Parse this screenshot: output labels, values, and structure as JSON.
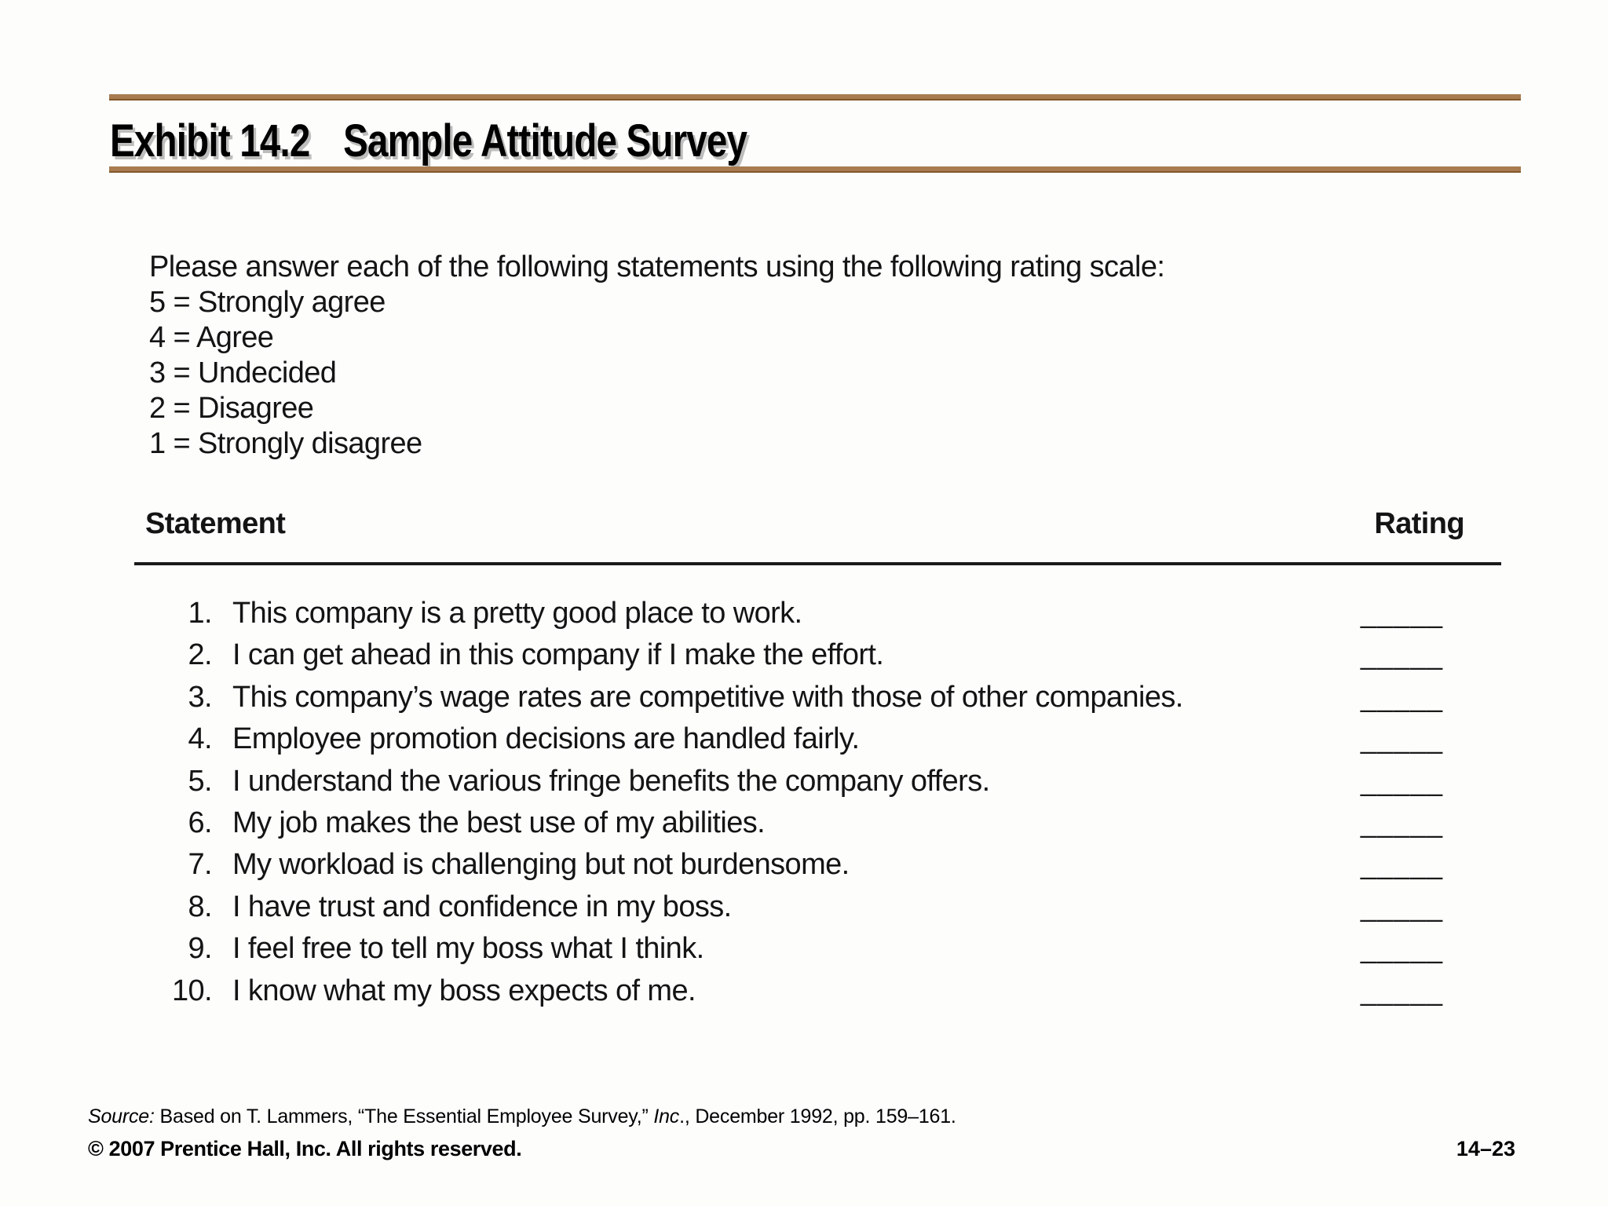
{
  "slide": {
    "title": {
      "exhibit_label": "Exhibit 14.2",
      "exhibit_name": "Sample Attitude Survey"
    },
    "survey": {
      "instructions": "Please answer each of the following statements using the following rating scale:",
      "scale": [
        "5 = Strongly agree",
        "4 = Agree",
        "3 = Undecided",
        "2 = Disagree",
        "1 = Strongly disagree"
      ],
      "table": {
        "statement_header": "Statement",
        "rating_header": "Rating",
        "rating_blank": "_____",
        "statements": [
          {
            "num": "1.",
            "text": "This company is a pretty good place to work."
          },
          {
            "num": "2.",
            "text": "I can get ahead in this company if I make the effort."
          },
          {
            "num": "3.",
            "text": "This company’s wage rates are competitive with those of other companies."
          },
          {
            "num": "4.",
            "text": "Employee promotion decisions are handled fairly."
          },
          {
            "num": "5.",
            "text": "I understand the various fringe benefits the company offers."
          },
          {
            "num": "6.",
            "text": "My job makes the best use of my abilities."
          },
          {
            "num": "7.",
            "text": "My workload is challenging but not burdensome."
          },
          {
            "num": "8.",
            "text": "I have trust and confidence in my boss."
          },
          {
            "num": "9.",
            "text": "I feel free to tell my boss what I think."
          },
          {
            "num": "10.",
            "text": "I know what my boss expects of me."
          }
        ]
      }
    },
    "footer": {
      "source_prefix": "Source:",
      "source_body": " Based on T. Lammers, “The Essential Employee Survey,” ",
      "source_pub": "Inc",
      "source_suffix": "., December 1992, pp. 159–161.",
      "copyright": "© 2007 Prentice Hall, Inc. All rights reserved.",
      "page_number": "14–23"
    },
    "colors": {
      "rule_brown": "#a87c50",
      "rule_brown_edge": "#815729",
      "table_rule_black": "#1a1a1a",
      "text": "#141414"
    }
  }
}
